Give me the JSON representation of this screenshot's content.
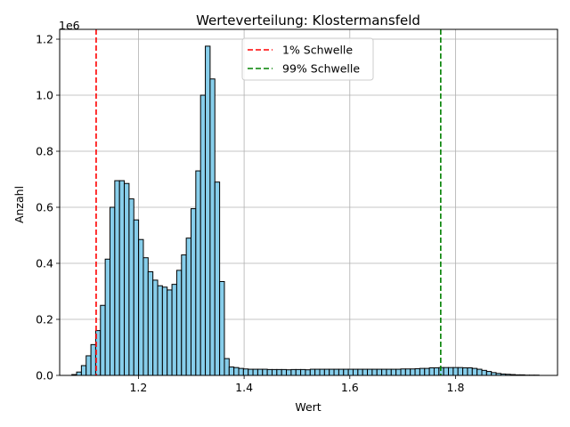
{
  "chart_data": {
    "type": "bar",
    "title": "Werteverteilung: Klostermansfeld",
    "xlabel": "Wert",
    "ylabel": "Anzahl",
    "y_scale_label": "1e6",
    "xlim": [
      1.051,
      1.993
    ],
    "ylim": [
      0,
      1.235
    ],
    "x_ticks": [
      1.2,
      1.4,
      1.6,
      1.8
    ],
    "x_tick_labels": [
      "1.2",
      "1.4",
      "1.6",
      "1.8"
    ],
    "y_ticks": [
      0,
      0.2,
      0.4,
      0.6,
      0.8,
      1.0,
      1.2
    ],
    "y_tick_labels": [
      "0.0",
      "0.2",
      "0.4",
      "0.6",
      "0.8",
      "1.0",
      "1.2"
    ],
    "grid": true,
    "bin_start": 1.056,
    "bin_width": 0.00902,
    "values": [
      0,
      0,
      0.003,
      0.012,
      0.035,
      0.07,
      0.11,
      0.16,
      0.25,
      0.415,
      0.6,
      0.695,
      0.695,
      0.685,
      0.63,
      0.555,
      0.485,
      0.42,
      0.37,
      0.34,
      0.32,
      0.315,
      0.305,
      0.325,
      0.375,
      0.43,
      0.49,
      0.595,
      0.73,
      1.0,
      1.175,
      1.058,
      0.69,
      0.335,
      0.06,
      0.03,
      0.028,
      0.025,
      0.023,
      0.022,
      0.022,
      0.022,
      0.022,
      0.021,
      0.021,
      0.021,
      0.021,
      0.02,
      0.021,
      0.021,
      0.021,
      0.02,
      0.022,
      0.022,
      0.022,
      0.022,
      0.022,
      0.022,
      0.022,
      0.022,
      0.022,
      0.022,
      0.022,
      0.022,
      0.022,
      0.022,
      0.022,
      0.022,
      0.022,
      0.022,
      0.022,
      0.023,
      0.023,
      0.023,
      0.024,
      0.025,
      0.025,
      0.027,
      0.027,
      0.028,
      0.028,
      0.028,
      0.028,
      0.028,
      0.027,
      0.027,
      0.025,
      0.022,
      0.018,
      0.014,
      0.01,
      0.007,
      0.005,
      0.004,
      0.003,
      0.002,
      0.002,
      0.001,
      0.001,
      0.001
    ],
    "bar_color": "#87CEEB",
    "bar_edge_color": "#000000",
    "thresholds": [
      {
        "label": "1% Schwelle",
        "value": 1.12,
        "color": "#FF0000"
      },
      {
        "label": "99% Schwelle",
        "value": 1.772,
        "color": "#008000"
      }
    ],
    "legend_position": "upper-center"
  }
}
